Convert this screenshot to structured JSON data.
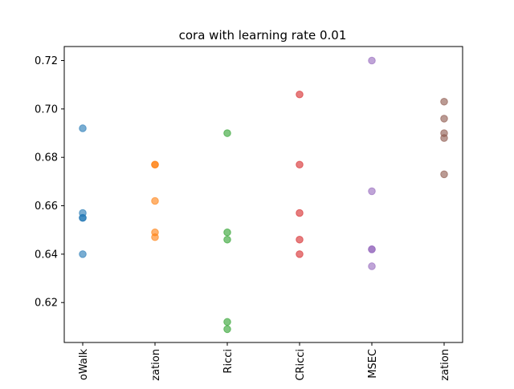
{
  "chart_data": {
    "type": "scatter",
    "title": "cora with learning rate 0.01",
    "xlabel": "",
    "ylabel": "",
    "categories": [
      "oWalk",
      "zation",
      "Ricci",
      "CRicci",
      "MSEC",
      "zation"
    ],
    "ylim": [
      0.6035,
      0.7258
    ],
    "yticks": [
      0.62,
      0.64,
      0.66,
      0.68,
      0.7,
      0.72
    ],
    "ytick_labels": [
      "0.62",
      "0.64",
      "0.66",
      "0.68",
      "0.70",
      "0.72"
    ],
    "grid": false,
    "marker_alpha": 0.6,
    "series": [
      {
        "color": "#1f77b4",
        "values": [
          0.692,
          0.657,
          0.655,
          0.655,
          0.64
        ]
      },
      {
        "color": "#ff7f0e",
        "values": [
          0.677,
          0.677,
          0.662,
          0.649,
          0.647
        ]
      },
      {
        "color": "#2ca02c",
        "values": [
          0.69,
          0.649,
          0.646,
          0.612,
          0.609
        ]
      },
      {
        "color": "#d62728",
        "values": [
          0.706,
          0.677,
          0.657,
          0.646,
          0.64
        ]
      },
      {
        "color": "#9467bd",
        "values": [
          0.72,
          0.666,
          0.642,
          0.642,
          0.635
        ]
      },
      {
        "color": "#8c564b",
        "values": [
          0.703,
          0.696,
          0.69,
          0.688,
          0.673
        ]
      }
    ]
  }
}
